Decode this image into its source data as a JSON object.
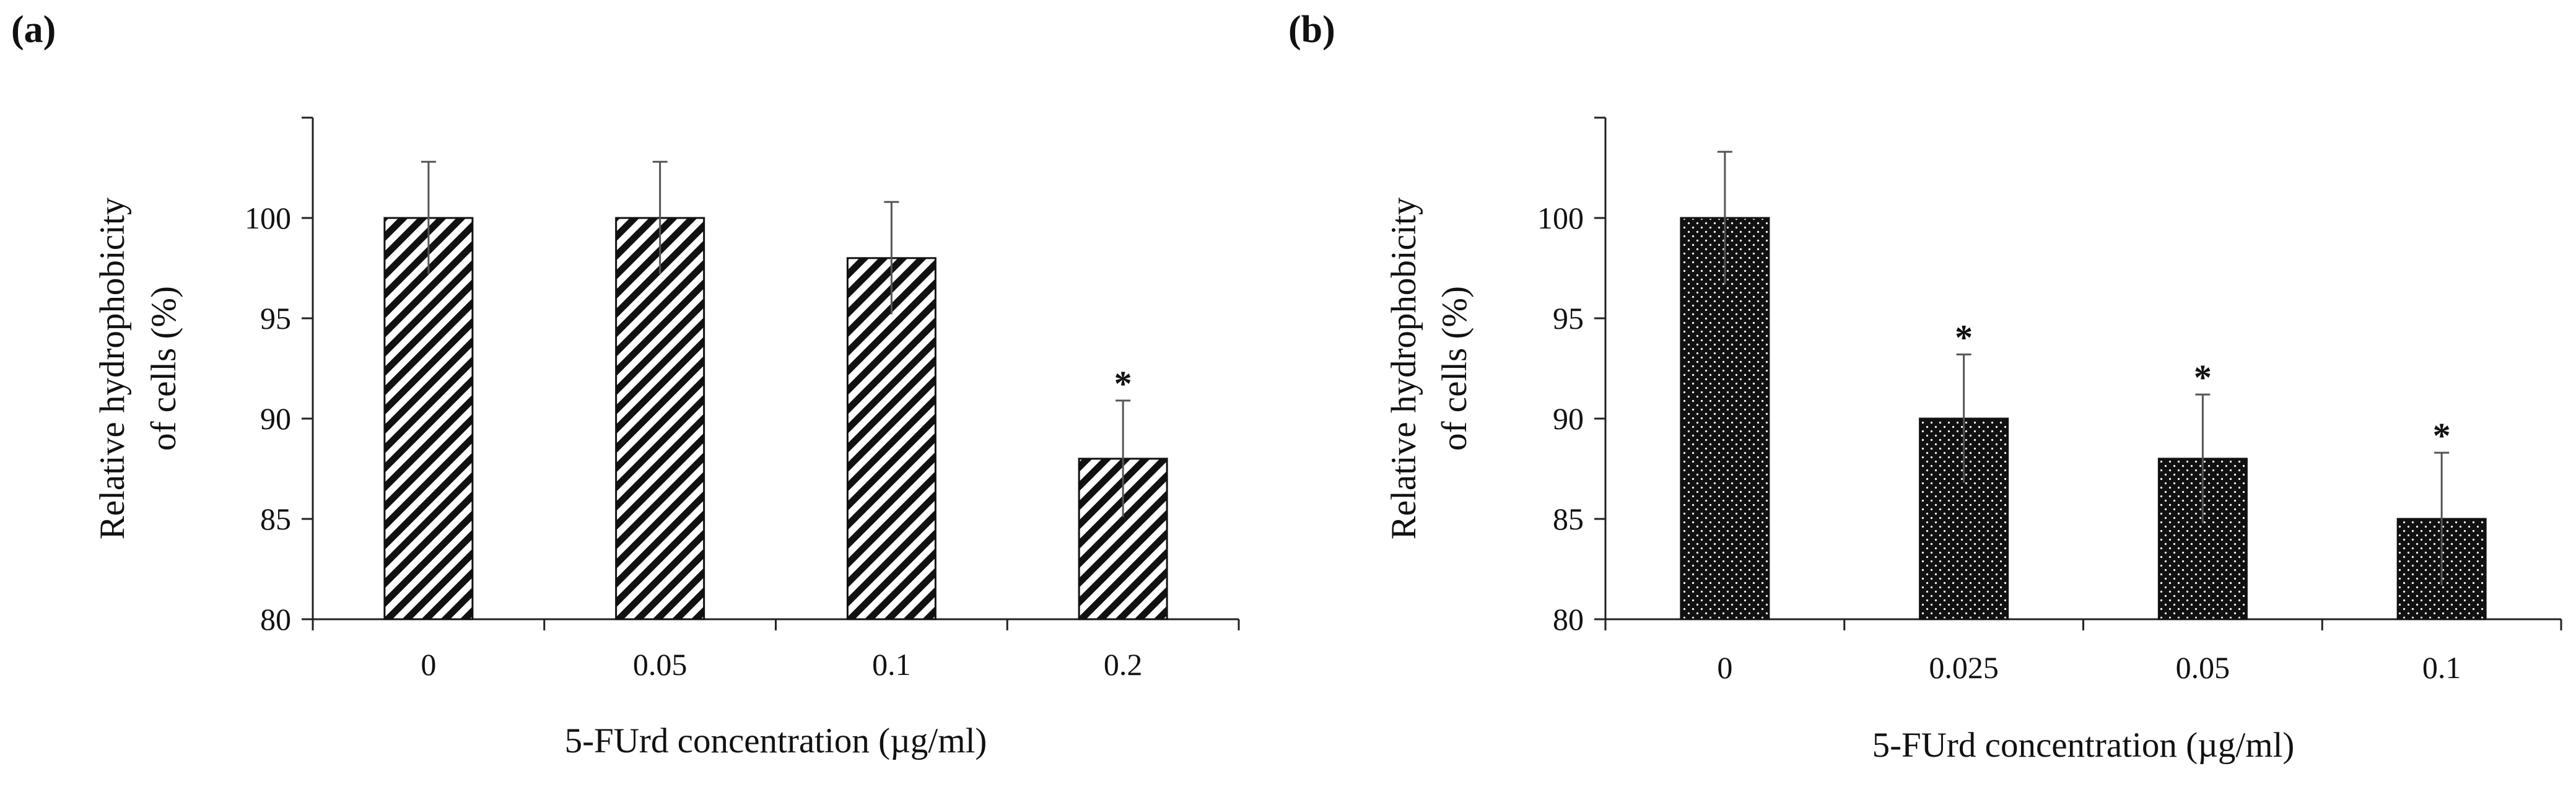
{
  "chart_data": [
    {
      "type": "bar",
      "panel_label": "(a)",
      "pattern": "diagonal-stripes",
      "title": "",
      "xlabel": "5-FUrd concentration (µg/ml)",
      "ylabel_lines": [
        "Relative hydrophobicity",
        "of cells (%)"
      ],
      "ylim": [
        80,
        105
      ],
      "yticks": [
        80,
        85,
        90,
        95,
        100
      ],
      "categories": [
        "0",
        "0.05",
        "0.1",
        "0.2"
      ],
      "values": [
        100,
        100,
        98,
        88
      ],
      "errors": [
        2.8,
        2.8,
        2.8,
        2.9
      ],
      "significance": [
        "",
        "",
        "",
        "*"
      ]
    },
    {
      "type": "bar",
      "panel_label": "(b)",
      "pattern": "dots",
      "title": "",
      "xlabel": "5-FUrd concentration (µg/ml)",
      "ylabel_lines": [
        "Relative hydrophobicity",
        "of cells (%)"
      ],
      "ylim": [
        80,
        105
      ],
      "yticks": [
        80,
        85,
        90,
        95,
        100
      ],
      "categories": [
        "0",
        "0.025",
        "0.05",
        "0.1"
      ],
      "values": [
        100,
        90,
        88,
        85
      ],
      "errors": [
        3.3,
        3.2,
        3.2,
        3.3
      ],
      "significance": [
        "",
        "*",
        "*",
        "*"
      ]
    }
  ],
  "colors": {
    "axis": "#222222",
    "bar_fill": "#111111",
    "pattern_light": "#ffffff"
  }
}
